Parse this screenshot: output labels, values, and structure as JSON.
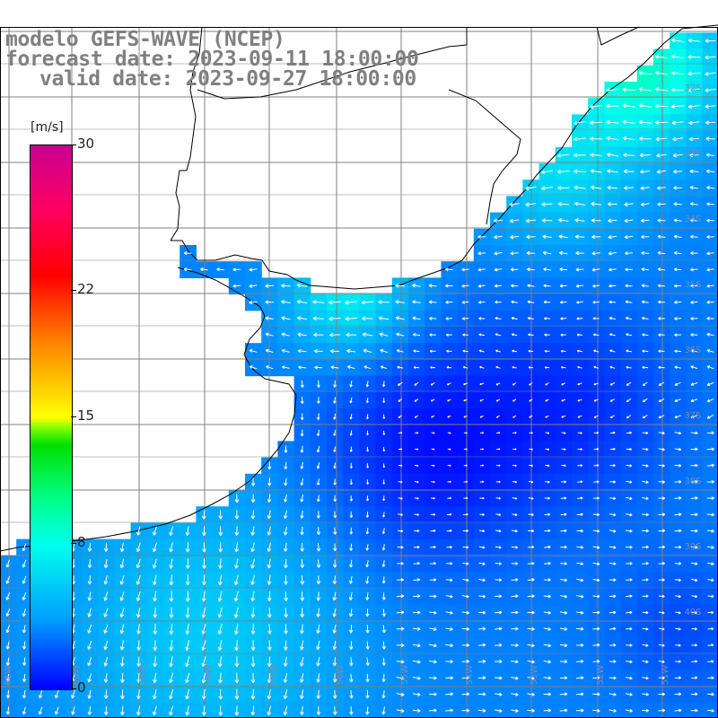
{
  "title": {
    "line1": "modelo GEFS-WAVE (NCEP)",
    "line2": "forecast date: 2023-09-11 18:00:00",
    "line3": "valid date: 2023-09-27 18:00:00"
  },
  "colorbar": {
    "unit": "[m/s]",
    "ticks": [
      {
        "label": "30",
        "value": 30
      },
      {
        "label": "22",
        "value": 22
      },
      {
        "label": "15",
        "value": 15
      },
      {
        "label": "8",
        "value": 8
      },
      {
        "label": "0",
        "value": 0
      }
    ],
    "min": 0,
    "max": 30
  },
  "map": {
    "lat_labels": [
      "32S",
      "33S",
      "34S",
      "35S",
      "36S",
      "37S",
      "38S",
      "39S",
      "40S"
    ],
    "lon_labels": [
      "61W",
      "60W",
      "59W",
      "58W",
      "57W",
      "56W",
      "55W",
      "54W",
      "53W",
      "52W",
      "51W"
    ],
    "field": "wind speed",
    "colors": {
      "land": "#ffffff",
      "grid": "#808080",
      "coast": "#000000",
      "arrows": "#ffffff"
    }
  }
}
